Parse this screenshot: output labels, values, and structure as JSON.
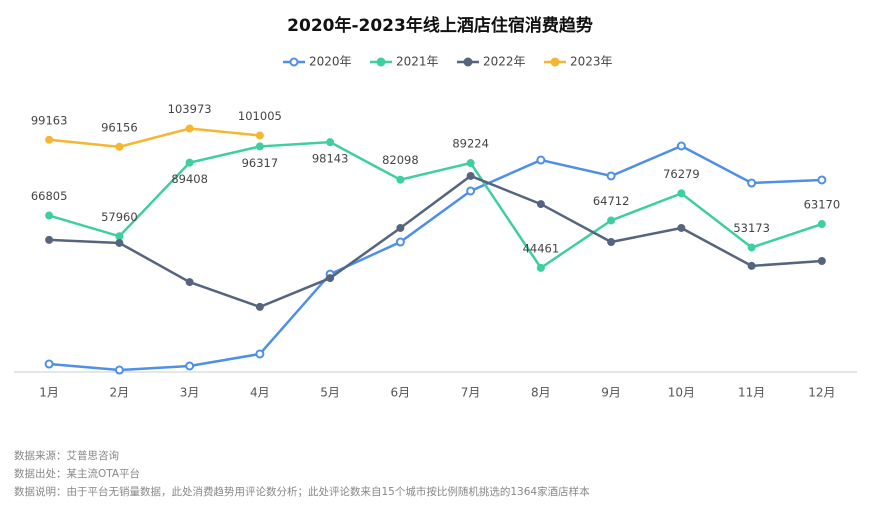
{
  "chart_data": {
    "type": "line",
    "title": "2020年-2023年线上酒店住宿消费趋势",
    "categories": [
      "1月",
      "2月",
      "3月",
      "4月",
      "5月",
      "6月",
      "7月",
      "8月",
      "9月",
      "10月",
      "11月",
      "12月"
    ],
    "ylim": [
      0,
      110000
    ],
    "series": [
      {
        "name": "2020年",
        "color": "#4e8fe8",
        "marker": "hollow",
        "show_labels": false,
        "values": [
          3400,
          850,
          2560,
          7700,
          41800,
          55500,
          77300,
          90500,
          83700,
          96500,
          80700,
          82000
        ]
      },
      {
        "name": "2021年",
        "color": "#3ecf9e",
        "marker": "dot",
        "show_labels": true,
        "values": [
          66805,
          57960,
          89408,
          96317,
          98143,
          82098,
          89224,
          44461,
          64712,
          76279,
          53173,
          63170
        ]
      },
      {
        "name": "2022年",
        "color": "#55657f",
        "marker": "dot",
        "show_labels": false,
        "values": [
          56400,
          55100,
          38400,
          27800,
          40100,
          61500,
          83700,
          71700,
          55500,
          61500,
          45300,
          47400
        ]
      },
      {
        "name": "2023年",
        "color": "#f5b731",
        "marker": "dot",
        "show_labels": true,
        "values": [
          99163,
          96156,
          103973,
          101005,
          null,
          null,
          null,
          null,
          null,
          null,
          null,
          null
        ]
      }
    ]
  },
  "footer": [
    "数据来源：艾普思咨询",
    "数据出处：某主流OTA平台",
    "数据说明：由于平台无销量数据，此处消费趋势用评论数分析；此处评论数来自15个城市按比例随机挑选的1364家酒店样本"
  ]
}
